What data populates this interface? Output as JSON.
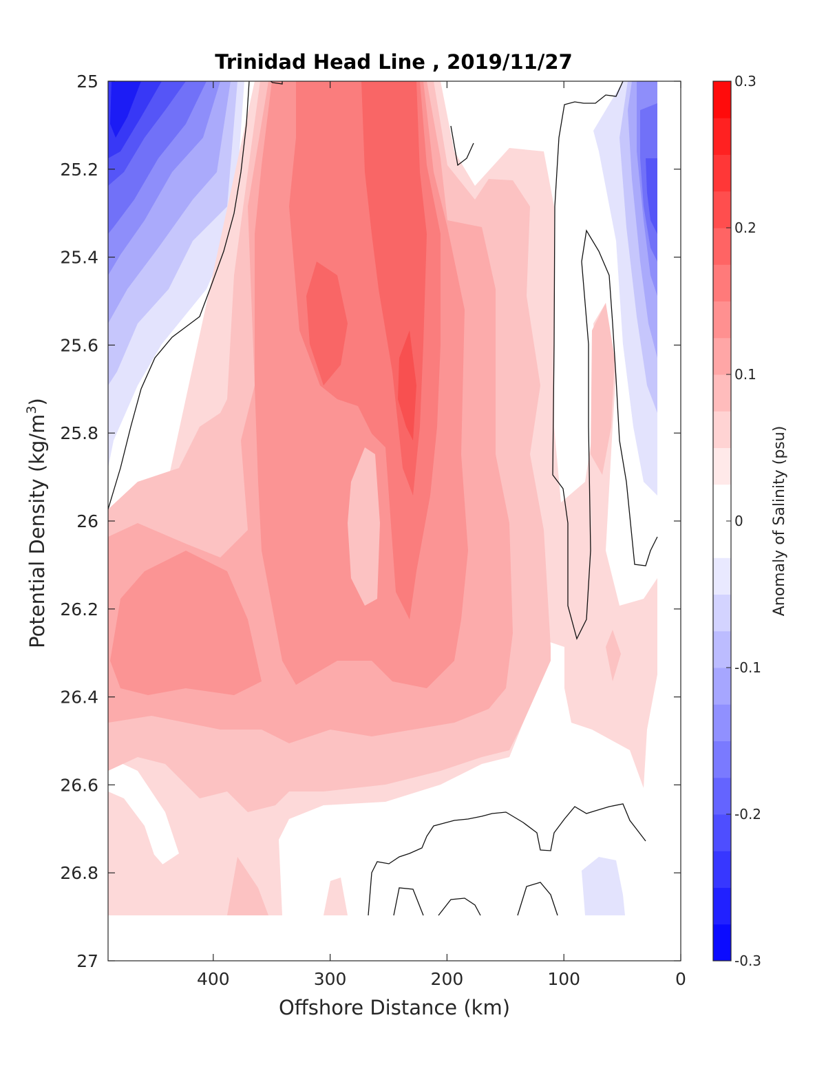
{
  "chart_data": {
    "type": "contour",
    "title": "Trinidad Head Line , 2019/11/27",
    "xlabel": "Offshore Distance (km)",
    "ylabel_main": "Potential Density (kg/m",
    "ylabel_sup": "3",
    "ylabel_close": ")",
    "xlim": [
      490,
      0
    ],
    "x_reversed": true,
    "ylim": [
      25,
      27
    ],
    "y_reversed": true,
    "x_ticks": [
      "400",
      "300",
      "200",
      "100",
      "0"
    ],
    "x_tick_values": [
      400,
      300,
      200,
      100,
      0
    ],
    "y_ticks": [
      "25",
      "25.2",
      "25.4",
      "25.6",
      "25.8",
      "26",
      "26.2",
      "26.4",
      "26.6",
      "26.8",
      "27"
    ],
    "y_tick_values": [
      25,
      25.2,
      25.4,
      25.6,
      25.8,
      26,
      26.2,
      26.4,
      26.6,
      26.8,
      27
    ],
    "colorbar": {
      "label": "Anomaly of Salinity (psu)",
      "range": [
        -0.3,
        0.3
      ],
      "tick_labels": [
        "0.3",
        "0.2",
        "0.1",
        "0",
        "-0.1",
        "-0.2",
        "-0.3"
      ],
      "tick_values": [
        0.3,
        0.2,
        0.1,
        0,
        -0.1,
        -0.2,
        -0.3
      ],
      "levels": 24,
      "neg_color": "#0000ff",
      "pos_color": "#ff0000",
      "zero_color": "#ffffff"
    },
    "features": [
      {
        "name": "offshore-fresh-anomaly",
        "x_range": [
          490,
          380
        ],
        "y_range": [
          25,
          25.9
        ],
        "peak": -0.22
      },
      {
        "name": "nearshore-fresh-anomaly",
        "x_range": [
          50,
          20
        ],
        "y_range": [
          25,
          25.95
        ],
        "peak": -0.18
      },
      {
        "name": "central-salty-core",
        "x_range": [
          330,
          200
        ],
        "y_range": [
          25,
          26.4
        ],
        "peak": 0.16
      },
      {
        "name": "deep-fresh-patch",
        "x_range": [
          85,
          50
        ],
        "y_range": [
          26.78,
          26.9
        ],
        "peak": -0.02
      }
    ]
  }
}
